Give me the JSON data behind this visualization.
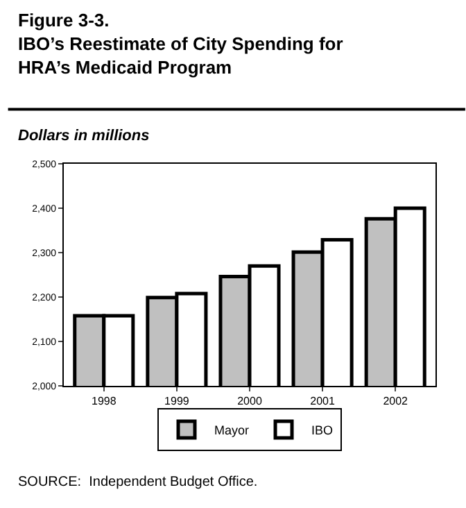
{
  "chart_data": {
    "type": "bar",
    "title": "Figure 3-3.\nIBO’s Reestimate of City Spending for\nHRA’s Medicaid Program",
    "subtitle": "Dollars in millions",
    "categories": [
      "1998",
      "1999",
      "2000",
      "2001",
      "2002"
    ],
    "series": [
      {
        "name": "Mayor",
        "color": "#c0c0c0",
        "values": [
          2158,
          2199,
          2246,
          2301,
          2376
        ]
      },
      {
        "name": "IBO",
        "color": "#ffffff",
        "values": [
          2158,
          2208,
          2270,
          2329,
          2400
        ]
      }
    ],
    "ylim": [
      2000,
      2500
    ],
    "yticks": [
      {
        "value": 2000,
        "label": "2,000"
      },
      {
        "value": 2100,
        "label": "2,100"
      },
      {
        "value": 2200,
        "label": "2,200"
      },
      {
        "value": 2300,
        "label": "2,300"
      },
      {
        "value": 2400,
        "label": "2,400"
      },
      {
        "value": 2500,
        "label": "2,500"
      }
    ],
    "legend": "bottom",
    "annotations": [
      "SOURCE:  Independent Budget Office."
    ]
  }
}
